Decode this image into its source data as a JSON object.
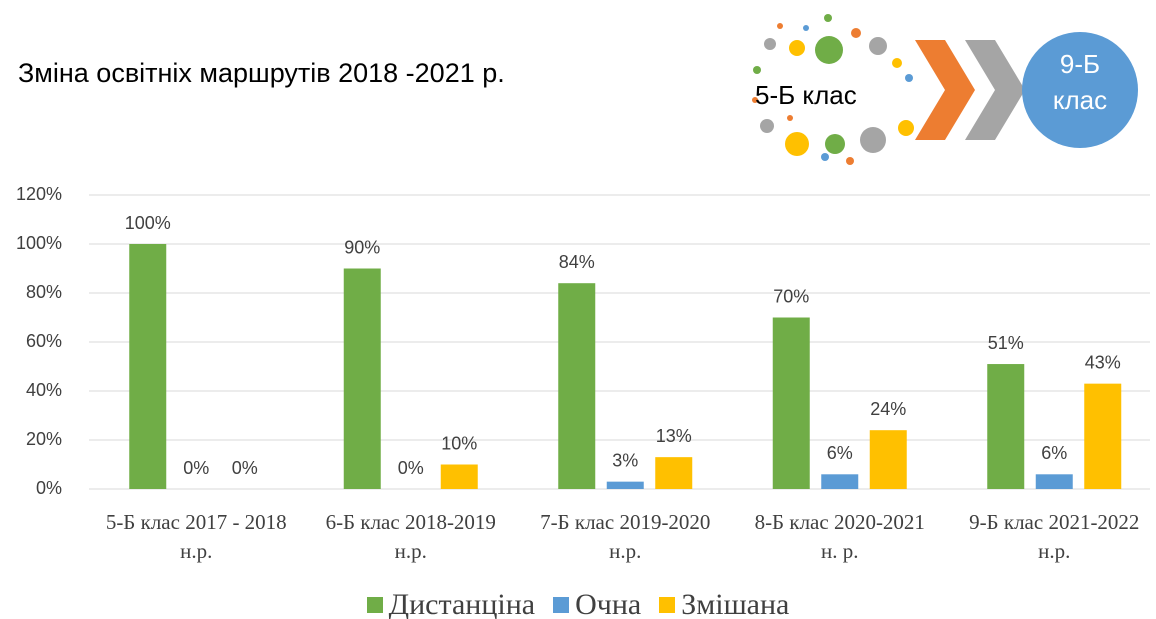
{
  "chart_data": {
    "type": "bar",
    "title": "Зміна освітніх маршрутів 2018 -2021 р.",
    "annotations": [
      "5-Б клас",
      "9-Б клас"
    ],
    "categories": [
      "5-Б клас 2017 - 2018 н.р.",
      "6-Б клас 2018-2019 н.р.",
      "7-Б клас 2019-2020 н.р.",
      "8-Б клас 2020-2021 н. р.",
      "9-Б клас 2021-2022 н.р."
    ],
    "series": [
      {
        "name": "Дистанціна",
        "color": "#70ad47",
        "values": [
          100,
          90,
          84,
          70,
          51
        ],
        "value_labels": [
          "100%",
          "90%",
          "84%",
          "70%",
          "51%"
        ]
      },
      {
        "name": "Очна",
        "color": "#5b9bd5",
        "values": [
          0,
          0,
          3,
          6,
          6
        ],
        "value_labels": [
          "0%",
          "0%",
          "3%",
          "6%",
          "6%"
        ]
      },
      {
        "name": "Змішана",
        "color": "#ffc000",
        "values": [
          0,
          10,
          13,
          24,
          43
        ],
        "value_labels": [
          "0%",
          "10%",
          "13%",
          "24%",
          "43%"
        ]
      }
    ],
    "ylim": [
      0,
      120
    ],
    "yticks": [
      {
        "value": 0,
        "label": "0%"
      },
      {
        "value": 20,
        "label": "20%"
      },
      {
        "value": 40,
        "label": "40%"
      },
      {
        "value": 60,
        "label": "60%"
      },
      {
        "value": 80,
        "label": "80%"
      },
      {
        "value": 100,
        "label": "100%"
      },
      {
        "value": 120,
        "label": "120%"
      }
    ],
    "grid": true,
    "legend": "bottom"
  }
}
